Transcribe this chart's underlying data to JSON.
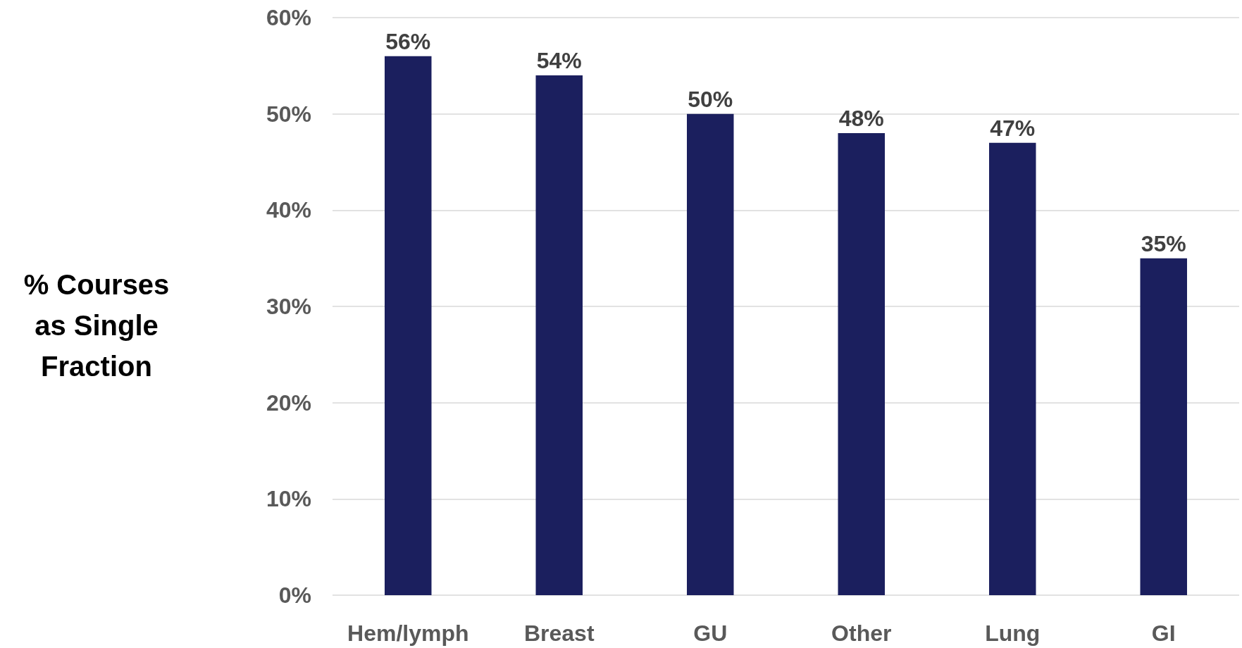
{
  "chart_data": {
    "type": "bar",
    "ylabel": "% Courses as Single Fraction",
    "categories": [
      "Hem/lymph",
      "Breast",
      "GU",
      "Other",
      "Lung",
      "GI"
    ],
    "values": [
      56,
      54,
      50,
      48,
      47,
      35
    ],
    "value_labels": [
      "56%",
      "54%",
      "50%",
      "48%",
      "47%",
      "35%"
    ],
    "color": "#1b1f5e",
    "ylim": [
      0,
      60
    ],
    "yticks": [
      {
        "value": 0,
        "label": "0%"
      },
      {
        "value": 10,
        "label": "10%"
      },
      {
        "value": 20,
        "label": "20%"
      },
      {
        "value": 30,
        "label": "30%"
      },
      {
        "value": 40,
        "label": "40%"
      },
      {
        "value": 50,
        "label": "50%"
      },
      {
        "value": 60,
        "label": "60%"
      }
    ],
    "grid": "y"
  }
}
